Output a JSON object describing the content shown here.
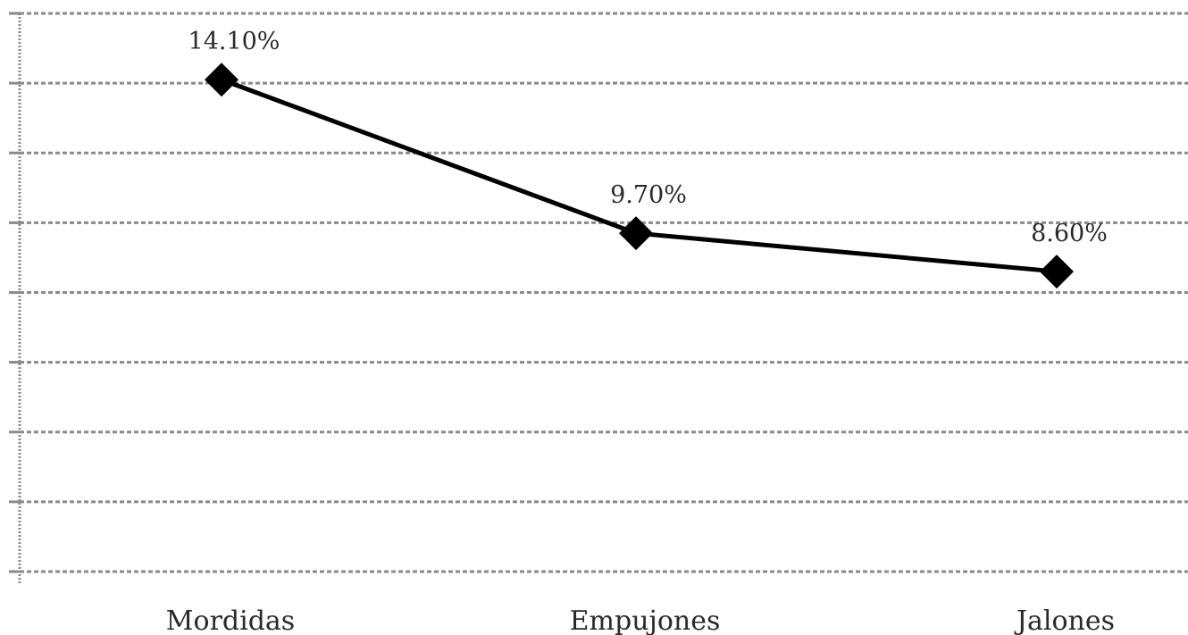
{
  "chart_data": {
    "type": "line",
    "title": "",
    "xlabel": "",
    "ylabel": "",
    "categories": [
      "Mordidas",
      "Empujones",
      "Jalones"
    ],
    "series": [
      {
        "values": [
          14.1,
          9.7,
          8.6
        ],
        "labels": [
          "14.10%",
          "9.70%",
          "8.60%"
        ]
      }
    ],
    "ylim": [
      0,
      16
    ],
    "grid": true,
    "legend": "none",
    "colors": {
      "line": "#000000",
      "grid": "#8a8a8a",
      "text": "#2a2a2a"
    }
  }
}
